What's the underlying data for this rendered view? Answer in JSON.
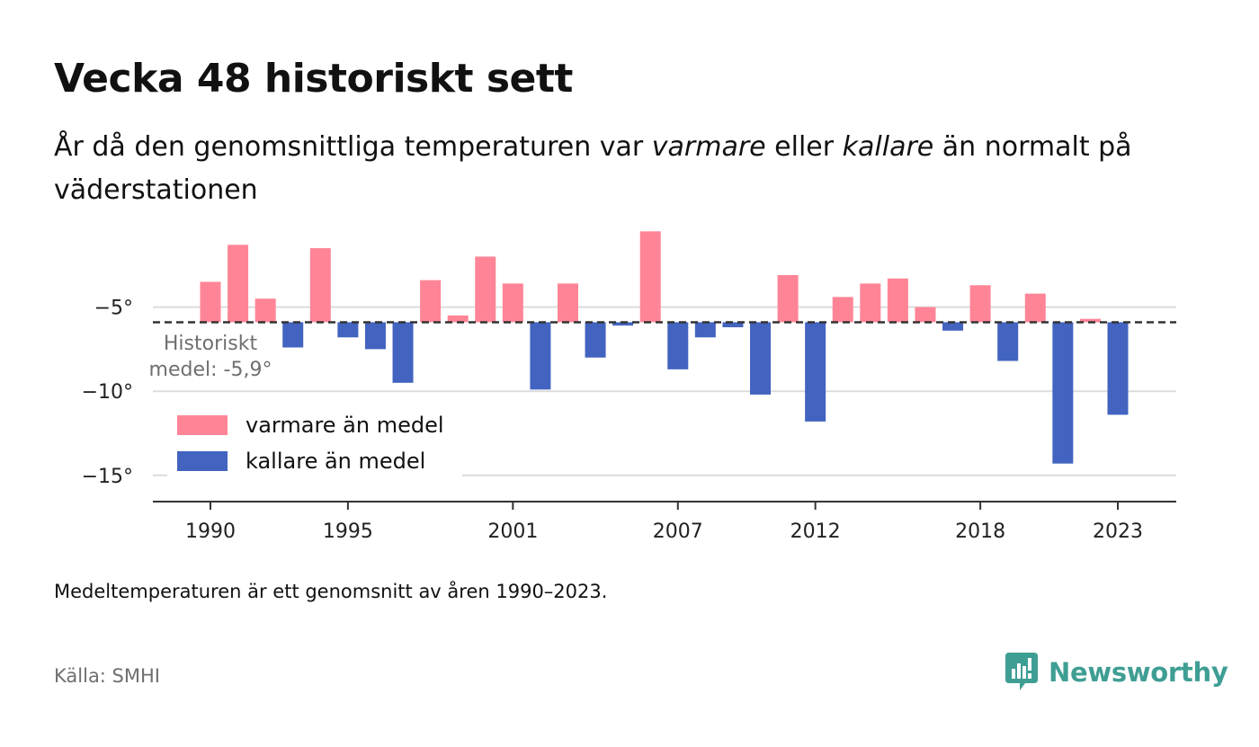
{
  "title": "Vecka 48 historiskt sett",
  "subtitle": {
    "part1": "År då den genomsnittliga temperaturen var ",
    "warm_word": "varmare",
    "part2": " eller ",
    "cold_word": "kallare",
    "part3": " än normalt på väderstationen"
  },
  "note": "Medeltemperaturen är ett genomsnitt av åren 1990–2023.",
  "source": "Källa: SMHI",
  "brand": {
    "name": "Newsworthy",
    "icon": "newsworthy-logo-icon",
    "color": "#3f9e93"
  },
  "colors": {
    "warm": "#ff8596",
    "cold": "#4263bf",
    "baseline": "#333333",
    "grid": "#dcdcdc"
  },
  "chart_data": {
    "type": "bar",
    "x": [
      1990,
      1991,
      1992,
      1993,
      1994,
      1995,
      1996,
      1997,
      1998,
      1999,
      2000,
      2001,
      2002,
      2003,
      2004,
      2005,
      2006,
      2007,
      2008,
      2009,
      2010,
      2011,
      2012,
      2013,
      2014,
      2015,
      2016,
      2017,
      2018,
      2019,
      2020,
      2021,
      2022,
      2023
    ],
    "values": [
      -3.5,
      -1.3,
      -4.5,
      -7.4,
      -1.5,
      -6.8,
      -7.5,
      -9.5,
      -3.4,
      -5.5,
      -2.0,
      -3.6,
      -9.9,
      -3.6,
      -8.0,
      -6.1,
      -0.5,
      -8.7,
      -6.8,
      -6.2,
      -10.2,
      -3.1,
      -11.8,
      -4.4,
      -3.6,
      -3.3,
      -5.0,
      -6.4,
      -3.7,
      -8.2,
      -4.2,
      -14.3,
      -5.7,
      -11.4
    ],
    "baseline": -5.9,
    "baseline_label": "Historiskt medel: -5,9°",
    "yticks": [
      -5,
      -10,
      -15
    ],
    "ytick_labels": [
      "−5°",
      "−10°",
      "−15°"
    ],
    "xticks": [
      1990,
      1995,
      2001,
      2007,
      2012,
      2018,
      2023
    ],
    "ylim": [
      -16.5,
      0
    ],
    "legend": {
      "position": "bottom-left",
      "items": [
        {
          "label": "varmare än medel",
          "color": "#ff8596"
        },
        {
          "label": "kallare än medel",
          "color": "#4263bf"
        }
      ]
    },
    "grid": "horizontal"
  }
}
